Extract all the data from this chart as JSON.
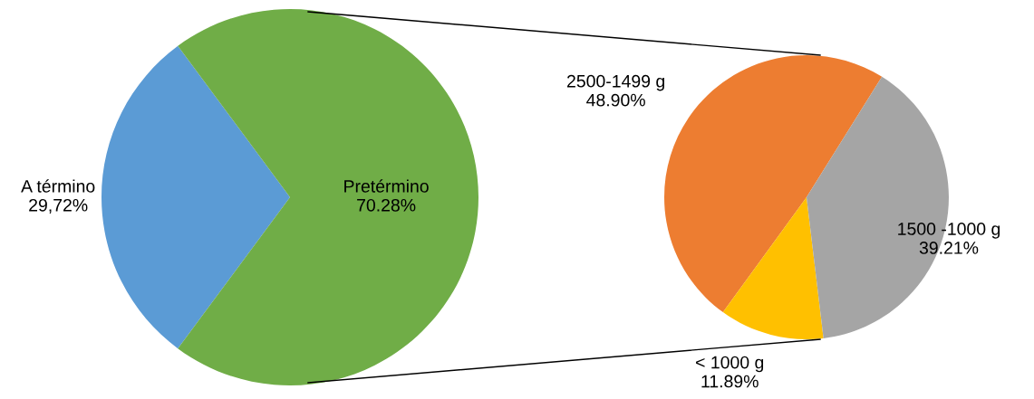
{
  "chart_data": [
    {
      "type": "pie",
      "categories": [
        "A término",
        "Pretérmino"
      ],
      "values": [
        29.72,
        70.28
      ],
      "colors": [
        "#5b9bd5",
        "#70ad47"
      ],
      "value_labels": [
        "29,72%",
        "70.28%"
      ]
    },
    {
      "type": "pie",
      "categories": [
        "2500-1499 g",
        "< 1000 g",
        "1500 -1000 g"
      ],
      "values": [
        48.9,
        11.89,
        39.21
      ],
      "colors": [
        "#ed7d31",
        "#ffc000",
        "#a5a5a5"
      ],
      "value_labels": [
        "48.90%",
        "11.89%",
        "39.21%"
      ]
    }
  ]
}
